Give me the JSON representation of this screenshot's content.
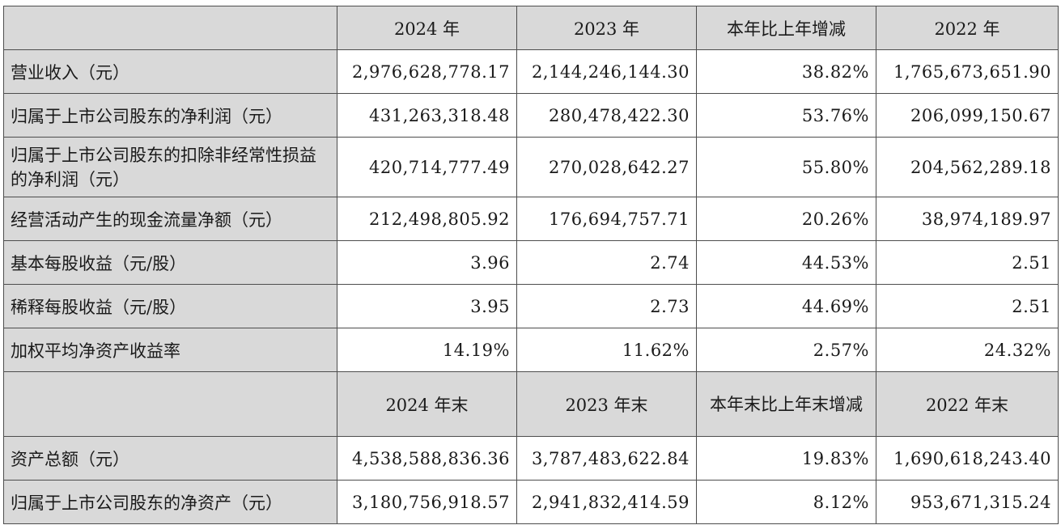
{
  "header1": [
    "",
    "2024 年",
    "2023 年",
    "本年比上年增减",
    "2022 年"
  ],
  "rows1": [
    {
      "label": "营业收入（元）",
      "values": [
        "2,976,628,778.17",
        "2,144,246,144.30",
        "38.82%",
        "1,765,673,651.90"
      ]
    },
    {
      "label": "归属于上市公司股东的净利润（元）",
      "values": [
        "431,263,318.48",
        "280,478,422.30",
        "53.76%",
        "206,099,150.67"
      ]
    },
    {
      "label": "归属于上市公司股东的扣除非经常性损益的净利润（元）",
      "values": [
        "420,714,777.49",
        "270,028,642.27",
        "55.80%",
        "204,562,289.18"
      ]
    },
    {
      "label": "经营活动产生的现金流量净额（元）",
      "values": [
        "212,498,805.92",
        "176,694,757.71",
        "20.26%",
        "38,974,189.97"
      ]
    },
    {
      "label": "基本每股收益（元/股）",
      "values": [
        "3.96",
        "2.74",
        "44.53%",
        "2.51"
      ]
    },
    {
      "label": "稀释每股收益（元/股）",
      "values": [
        "3.95",
        "2.73",
        "44.69%",
        "2.51"
      ]
    },
    {
      "label": "加权平均净资产收益率",
      "values": [
        "14.19%",
        "11.62%",
        "2.57%",
        "24.32%"
      ]
    }
  ],
  "header2": [
    "",
    "2024 年末",
    "2023 年末",
    "本年末比上年末增减",
    "2022 年末"
  ],
  "rows2": [
    {
      "label": "资产总额（元）",
      "values": [
        "4,538,588,836.36",
        "3,787,483,622.84",
        "19.83%",
        "1,690,618,243.40"
      ]
    },
    {
      "label": "归属于上市公司股东的净资产（元）",
      "values": [
        "3,180,756,918.57",
        "2,941,832,414.59",
        "8.12%",
        "953,671,315.24"
      ]
    }
  ]
}
